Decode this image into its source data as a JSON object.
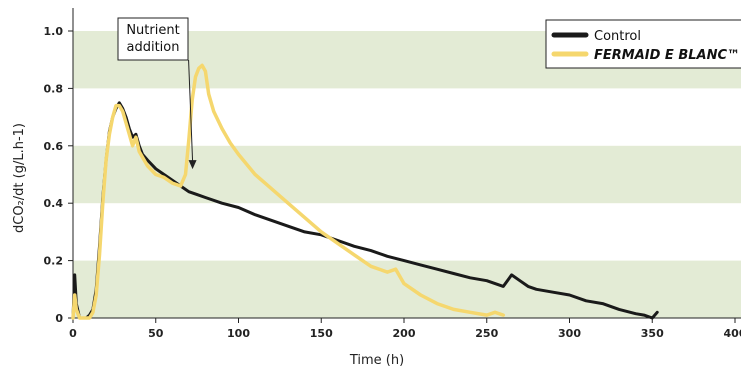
{
  "chart_data": {
    "type": "line",
    "xlabel": "Time (h)",
    "ylabel": "dCO₂/dt (g/L.h-1)",
    "xlim": [
      0,
      400
    ],
    "ylim": [
      0,
      1.0
    ],
    "x_ticks": [
      "0",
      "50",
      "100",
      "150",
      "200",
      "250",
      "300",
      "350",
      "400"
    ],
    "y_ticks": [
      "0",
      "0.2",
      "0.4",
      "0.6",
      "0.8",
      "1.0"
    ],
    "bands_color": "#e3ebd5",
    "legend_position": "top-right",
    "series": [
      {
        "name": "Control",
        "color": "#1a1a1a",
        "x": [
          0,
          1,
          2,
          4,
          6,
          8,
          10,
          12,
          14,
          16,
          18,
          20,
          22,
          24,
          26,
          28,
          30,
          32,
          34,
          36,
          38,
          40,
          42,
          45,
          50,
          55,
          60,
          65,
          70,
          75,
          80,
          90,
          100,
          110,
          120,
          130,
          140,
          150,
          160,
          170,
          180,
          190,
          200,
          210,
          220,
          230,
          240,
          250,
          260,
          265,
          270,
          275,
          280,
          290,
          300,
          310,
          320,
          330,
          340,
          345,
          350,
          353
        ],
        "y": [
          0.0,
          0.15,
          0.05,
          0.0,
          0.0,
          0.0,
          0.01,
          0.03,
          0.1,
          0.25,
          0.42,
          0.55,
          0.65,
          0.7,
          0.73,
          0.75,
          0.73,
          0.7,
          0.66,
          0.63,
          0.64,
          0.6,
          0.57,
          0.55,
          0.52,
          0.5,
          0.48,
          0.46,
          0.44,
          0.43,
          0.42,
          0.4,
          0.385,
          0.36,
          0.34,
          0.32,
          0.3,
          0.29,
          0.27,
          0.25,
          0.235,
          0.215,
          0.2,
          0.185,
          0.17,
          0.155,
          0.14,
          0.13,
          0.11,
          0.15,
          0.13,
          0.11,
          0.1,
          0.09,
          0.08,
          0.06,
          0.05,
          0.03,
          0.015,
          0.01,
          0.0,
          0.02
        ]
      },
      {
        "name": "FERMAID E BLANC™",
        "color": "#f5d76e",
        "x": [
          0,
          1,
          2,
          4,
          6,
          8,
          10,
          12,
          14,
          16,
          18,
          20,
          22,
          24,
          26,
          28,
          30,
          32,
          34,
          36,
          38,
          40,
          42,
          45,
          50,
          55,
          60,
          65,
          68,
          70,
          72,
          74,
          76,
          78,
          80,
          82,
          85,
          90,
          95,
          100,
          110,
          120,
          130,
          140,
          150,
          160,
          170,
          180,
          190,
          195,
          200,
          210,
          220,
          230,
          240,
          250,
          255,
          260
        ],
        "y": [
          0.0,
          0.08,
          0.03,
          0.0,
          0.0,
          0.0,
          0.0,
          0.02,
          0.08,
          0.22,
          0.4,
          0.55,
          0.64,
          0.7,
          0.74,
          0.74,
          0.72,
          0.68,
          0.64,
          0.6,
          0.63,
          0.58,
          0.56,
          0.53,
          0.5,
          0.49,
          0.47,
          0.46,
          0.5,
          0.62,
          0.76,
          0.84,
          0.87,
          0.88,
          0.86,
          0.78,
          0.72,
          0.66,
          0.61,
          0.57,
          0.5,
          0.45,
          0.4,
          0.35,
          0.3,
          0.26,
          0.22,
          0.18,
          0.16,
          0.17,
          0.12,
          0.08,
          0.05,
          0.03,
          0.02,
          0.01,
          0.02,
          0.01
        ]
      }
    ],
    "annotation": {
      "lines": [
        "Nutrient",
        "addition"
      ],
      "x": 65,
      "y": 0.47
    }
  }
}
